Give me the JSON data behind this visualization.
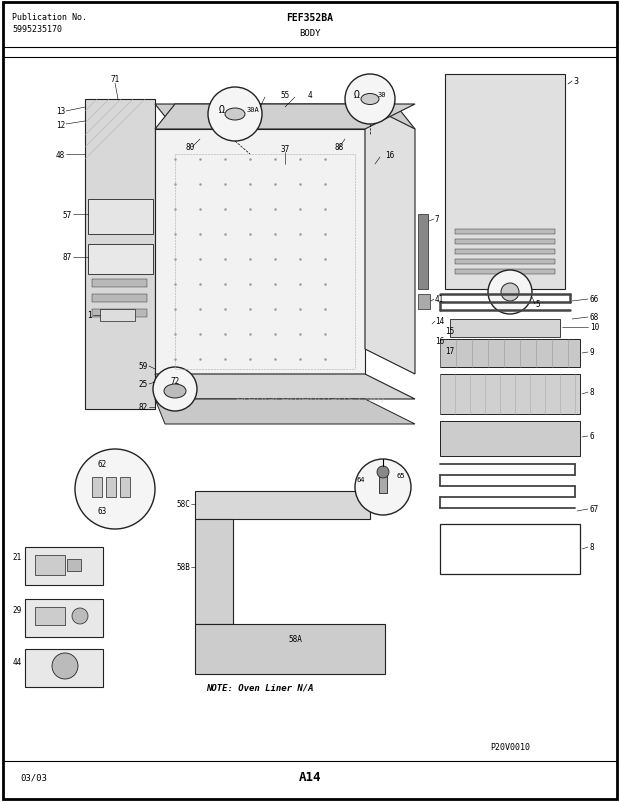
{
  "title": "FEF352BA",
  "subtitle": "BODY",
  "pub_no_label": "Publication No.",
  "pub_no": "5995235170",
  "page": "A14",
  "date": "03/03",
  "model_code": "P20V0010",
  "watermark": "ereplacementparts.com",
  "bg_color": "#ffffff",
  "border_color": "#000000",
  "line_color": "#222222",
  "note_text": "NOTE: Oven Liner N/A"
}
